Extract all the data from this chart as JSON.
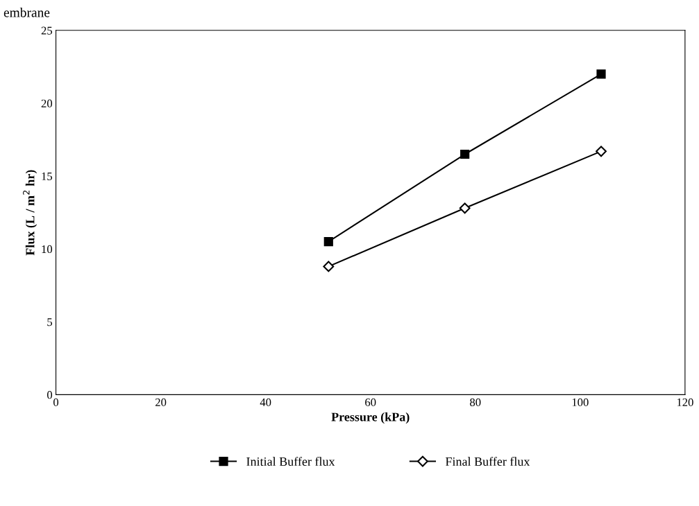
{
  "chart_data": {
    "type": "line",
    "title": "embrane",
    "xlabel": "Pressure (kPa)",
    "ylabel": "Flux (L / m$^{2}$ hr)",
    "x": [
      52,
      78,
      104
    ],
    "series": [
      {
        "name": "Initial Buffer flux",
        "color": "#000000",
        "values": [
          10.5,
          16.5,
          22
        ],
        "marker": "square"
      },
      {
        "name": "Final Buffer flux",
        "color": "#000000",
        "values": [
          8.8,
          12.8,
          16.7
        ],
        "marker": "diamond"
      }
    ],
    "xlim": [
      0,
      120
    ],
    "xticks": [
      0,
      20,
      40,
      60,
      80,
      100,
      120
    ],
    "ylim": [
      0,
      25
    ],
    "yticks": [
      0,
      5,
      10,
      15,
      20,
      25
    ],
    "grid": false,
    "legend": "bottom",
    "line_style": "solid"
  }
}
